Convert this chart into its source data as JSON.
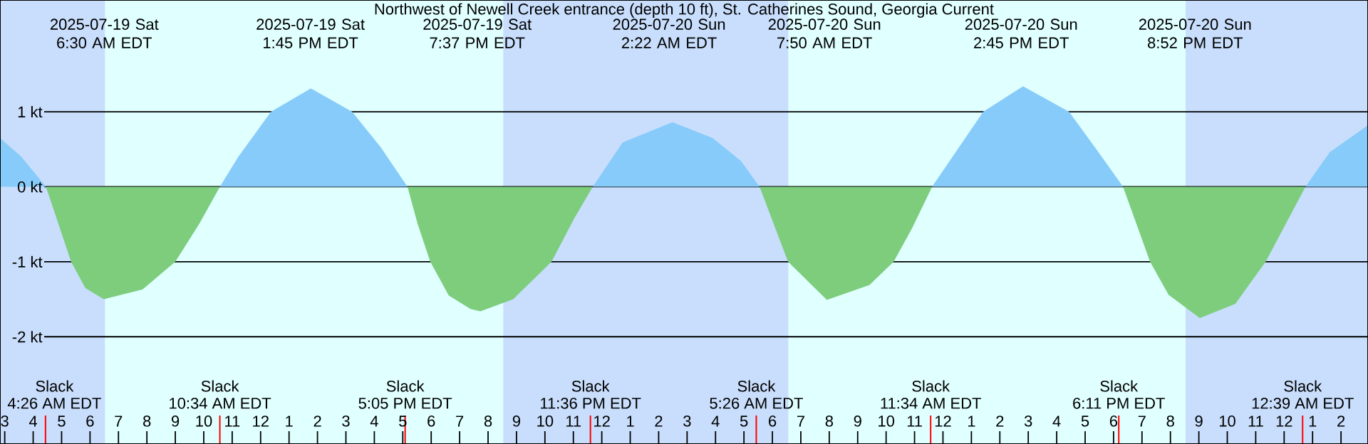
{
  "chart_data": {
    "type": "area",
    "title": "Northwest of Newell Creek entrance (depth 10 ft), St. Catherines Sound, Georgia Current",
    "x": [
      "2025-07-19T02:50",
      "2025-07-19T03:35",
      "2025-07-19T04:27",
      "2025-07-19T04:44",
      "2025-07-19T05:20",
      "2025-07-19T05:50",
      "2025-07-19T06:29",
      "2025-07-19T07:51",
      "2025-07-19T09:00",
      "2025-07-19T09:51",
      "2025-07-19T10:34",
      "2025-07-19T11:13",
      "2025-07-19T12:22",
      "2025-07-19T13:46",
      "2025-07-19T15:13",
      "2025-07-19T16:13",
      "2025-07-19T17:10",
      "2025-07-19T17:31",
      "2025-07-19T17:58",
      "2025-07-19T18:37",
      "2025-07-19T19:23",
      "2025-07-19T19:44",
      "2025-07-19T20:53",
      "2025-07-19T22:14",
      "2025-07-19T23:02",
      "2025-07-19T23:41",
      "2025-07-20T00:44",
      "2025-07-20T02:29",
      "2025-07-20T03:54",
      "2025-07-20T04:54",
      "2025-07-20T05:33",
      "2025-07-20T06:33",
      "2025-07-20T07:55",
      "2025-07-20T09:25",
      "2025-07-20T10:16",
      "2025-07-20T10:55",
      "2025-07-20T11:37",
      "2025-07-20T13:25",
      "2025-07-20T14:49",
      "2025-07-20T16:26",
      "2025-07-20T17:35",
      "2025-07-20T18:20",
      "2025-07-20T19:17",
      "2025-07-20T19:56",
      "2025-07-20T21:02",
      "2025-07-20T22:17",
      "2025-07-20T23:21",
      "2025-07-21T00:45",
      "2025-07-21T01:36",
      "2025-07-21T02:57"
    ],
    "series": [
      {
        "color": "#87cbfa",
        "values": [
          0.65,
          0.4,
          0,
          null,
          null,
          null,
          null,
          null,
          null,
          null,
          0,
          0.4,
          1.0,
          1.31,
          1.0,
          0.53,
          0,
          null,
          null,
          null,
          null,
          null,
          null,
          null,
          null,
          0,
          0.59,
          0.86,
          0.65,
          0.34,
          0,
          null,
          null,
          null,
          null,
          null,
          0,
          1.0,
          1.34,
          1.0,
          0.4,
          0,
          null,
          null,
          null,
          null,
          null,
          0,
          0.46,
          0.82
        ]
      },
      {
        "color": "#7dcd7d",
        "values": [
          null,
          null,
          0,
          -0.32,
          -1.0,
          -1.35,
          -1.5,
          -1.37,
          -1.0,
          -0.49,
          0,
          null,
          null,
          null,
          null,
          null,
          0,
          -0.49,
          -1.0,
          -1.45,
          -1.63,
          -1.66,
          -1.5,
          -1.0,
          -0.42,
          0,
          null,
          null,
          null,
          null,
          0,
          -1.0,
          -1.51,
          -1.31,
          -1.0,
          -0.55,
          0,
          null,
          null,
          null,
          null,
          0,
          -1.0,
          -1.44,
          -1.75,
          -1.56,
          -1.0,
          0,
          null,
          null
        ]
      }
    ],
    "xlim": [
      "2025-07-19T02:50",
      "2025-07-21T02:57"
    ],
    "ylim": [
      -3.43,
      2.49
    ],
    "xticks": [
      {
        "value": "2025-07-19T03:00",
        "label": "3"
      },
      {
        "value": "2025-07-19T04:00",
        "label": "4"
      },
      {
        "value": "2025-07-19T05:00",
        "label": "5"
      },
      {
        "value": "2025-07-19T06:00",
        "label": "6"
      },
      {
        "value": "2025-07-19T07:00",
        "label": "7"
      },
      {
        "value": "2025-07-19T08:00",
        "label": "8"
      },
      {
        "value": "2025-07-19T09:00",
        "label": "9"
      },
      {
        "value": "2025-07-19T10:00",
        "label": "10"
      },
      {
        "value": "2025-07-19T11:00",
        "label": "11"
      },
      {
        "value": "2025-07-19T12:00",
        "label": "12"
      },
      {
        "value": "2025-07-19T13:00",
        "label": "1"
      },
      {
        "value": "2025-07-19T14:00",
        "label": "2"
      },
      {
        "value": "2025-07-19T15:00",
        "label": "3"
      },
      {
        "value": "2025-07-19T16:00",
        "label": "4"
      },
      {
        "value": "2025-07-19T17:00",
        "label": "5"
      },
      {
        "value": "2025-07-19T18:00",
        "label": "6"
      },
      {
        "value": "2025-07-19T19:00",
        "label": "7"
      },
      {
        "value": "2025-07-19T20:00",
        "label": "8"
      },
      {
        "value": "2025-07-19T21:00",
        "label": "9"
      },
      {
        "value": "2025-07-19T22:00",
        "label": "10"
      },
      {
        "value": "2025-07-19T23:00",
        "label": "11"
      },
      {
        "value": "2025-07-20T00:00",
        "label": "12"
      },
      {
        "value": "2025-07-20T01:00",
        "label": "1"
      },
      {
        "value": "2025-07-20T02:00",
        "label": "2"
      },
      {
        "value": "2025-07-20T03:00",
        "label": "3"
      },
      {
        "value": "2025-07-20T04:00",
        "label": "4"
      },
      {
        "value": "2025-07-20T05:00",
        "label": "5"
      },
      {
        "value": "2025-07-20T06:00",
        "label": "6"
      },
      {
        "value": "2025-07-20T07:00",
        "label": "7"
      },
      {
        "value": "2025-07-20T08:00",
        "label": "8"
      },
      {
        "value": "2025-07-20T09:00",
        "label": "9"
      },
      {
        "value": "2025-07-20T10:00",
        "label": "10"
      },
      {
        "value": "2025-07-20T11:00",
        "label": "11"
      },
      {
        "value": "2025-07-20T12:00",
        "label": "12"
      },
      {
        "value": "2025-07-20T13:00",
        "label": "1"
      },
      {
        "value": "2025-07-20T14:00",
        "label": "2"
      },
      {
        "value": "2025-07-20T15:00",
        "label": "3"
      },
      {
        "value": "2025-07-20T16:00",
        "label": "4"
      },
      {
        "value": "2025-07-20T17:00",
        "label": "5"
      },
      {
        "value": "2025-07-20T18:00",
        "label": "6"
      },
      {
        "value": "2025-07-20T19:00",
        "label": "7"
      },
      {
        "value": "2025-07-20T20:00",
        "label": "8"
      },
      {
        "value": "2025-07-20T21:00",
        "label": "9"
      },
      {
        "value": "2025-07-20T22:00",
        "label": "10"
      },
      {
        "value": "2025-07-20T23:00",
        "label": "11"
      },
      {
        "value": "2025-07-21T00:00",
        "label": "12"
      },
      {
        "value": "2025-07-21T01:00",
        "label": "1"
      },
      {
        "value": "2025-07-21T02:00",
        "label": "2"
      }
    ],
    "yticks": [
      {
        "value": 1,
        "label": "1 kt"
      },
      {
        "value": 0,
        "label": "0 kt"
      },
      {
        "value": -1,
        "label": "-1 kt"
      },
      {
        "value": -2,
        "label": "-2 kt"
      }
    ],
    "grid": "y",
    "bands": [
      {
        "axis": "x",
        "from": "2025-07-19T02:50",
        "to": "2025-07-19T06:32",
        "color": "#c8defc"
      },
      {
        "axis": "x",
        "from": "2025-07-19T06:32",
        "to": "2025-07-19T20:32",
        "color": "#e0ffff"
      },
      {
        "axis": "x",
        "from": "2025-07-19T20:32",
        "to": "2025-07-20T06:34",
        "color": "#c8defc"
      },
      {
        "axis": "x",
        "from": "2025-07-20T06:34",
        "to": "2025-07-20T20:32",
        "color": "#e0ffff"
      },
      {
        "axis": "x",
        "from": "2025-07-20T20:32",
        "to": "2025-07-21T02:57",
        "color": "#c8defc"
      }
    ],
    "x2lim": [
      "2025-07-19T02:50",
      "2025-07-21T02:57"
    ],
    "x2ticks": [
      {
        "value": "2025-07-19T06:30",
        "label": "2025-07-19 Sat 6:30 AM EDT"
      },
      {
        "value": "2025-07-19T13:45",
        "label": "2025-07-19 Sat 1:45 PM EDT"
      },
      {
        "value": "2025-07-19T19:37",
        "label": "2025-07-19 Sat 7:37 PM EDT"
      },
      {
        "value": "2025-07-20T02:22",
        "label": "2025-07-20 Sun 2:22 AM EDT"
      },
      {
        "value": "2025-07-20T07:50",
        "label": "2025-07-20 Sun 7:50 AM EDT"
      },
      {
        "value": "2025-07-20T14:45",
        "label": "2025-07-20 Sun 2:45 PM EDT"
      },
      {
        "value": "2025-07-20T20:52",
        "label": "2025-07-20 Sun 8:52 PM EDT"
      }
    ],
    "ref_lines": [
      {
        "axis": "x",
        "value": "2025-07-19T04:26",
        "label": "Slack 4:26 AM EDT",
        "color": "#ff0000"
      },
      {
        "axis": "x",
        "value": "2025-07-19T10:34",
        "label": "Slack 10:34 AM EDT",
        "color": "#ff0000"
      },
      {
        "axis": "x",
        "value": "2025-07-19T17:05",
        "label": "Slack 5:05 PM EDT",
        "color": "#ff0000"
      },
      {
        "axis": "x",
        "value": "2025-07-19T23:36",
        "label": "Slack 11:36 PM EDT",
        "color": "#ff0000"
      },
      {
        "axis": "x",
        "value": "2025-07-20T05:26",
        "label": "Slack 5:26 AM EDT",
        "color": "#ff0000"
      },
      {
        "axis": "x",
        "value": "2025-07-20T11:34",
        "label": "Slack 11:34 AM EDT",
        "color": "#ff0000"
      },
      {
        "axis": "x",
        "value": "2025-07-20T18:11",
        "label": "Slack 6:11 PM EDT",
        "color": "#ff0000"
      },
      {
        "axis": "x",
        "value": "2025-07-21T00:39",
        "label": "Slack 12:39 AM EDT",
        "color": "#ff0000"
      }
    ]
  }
}
